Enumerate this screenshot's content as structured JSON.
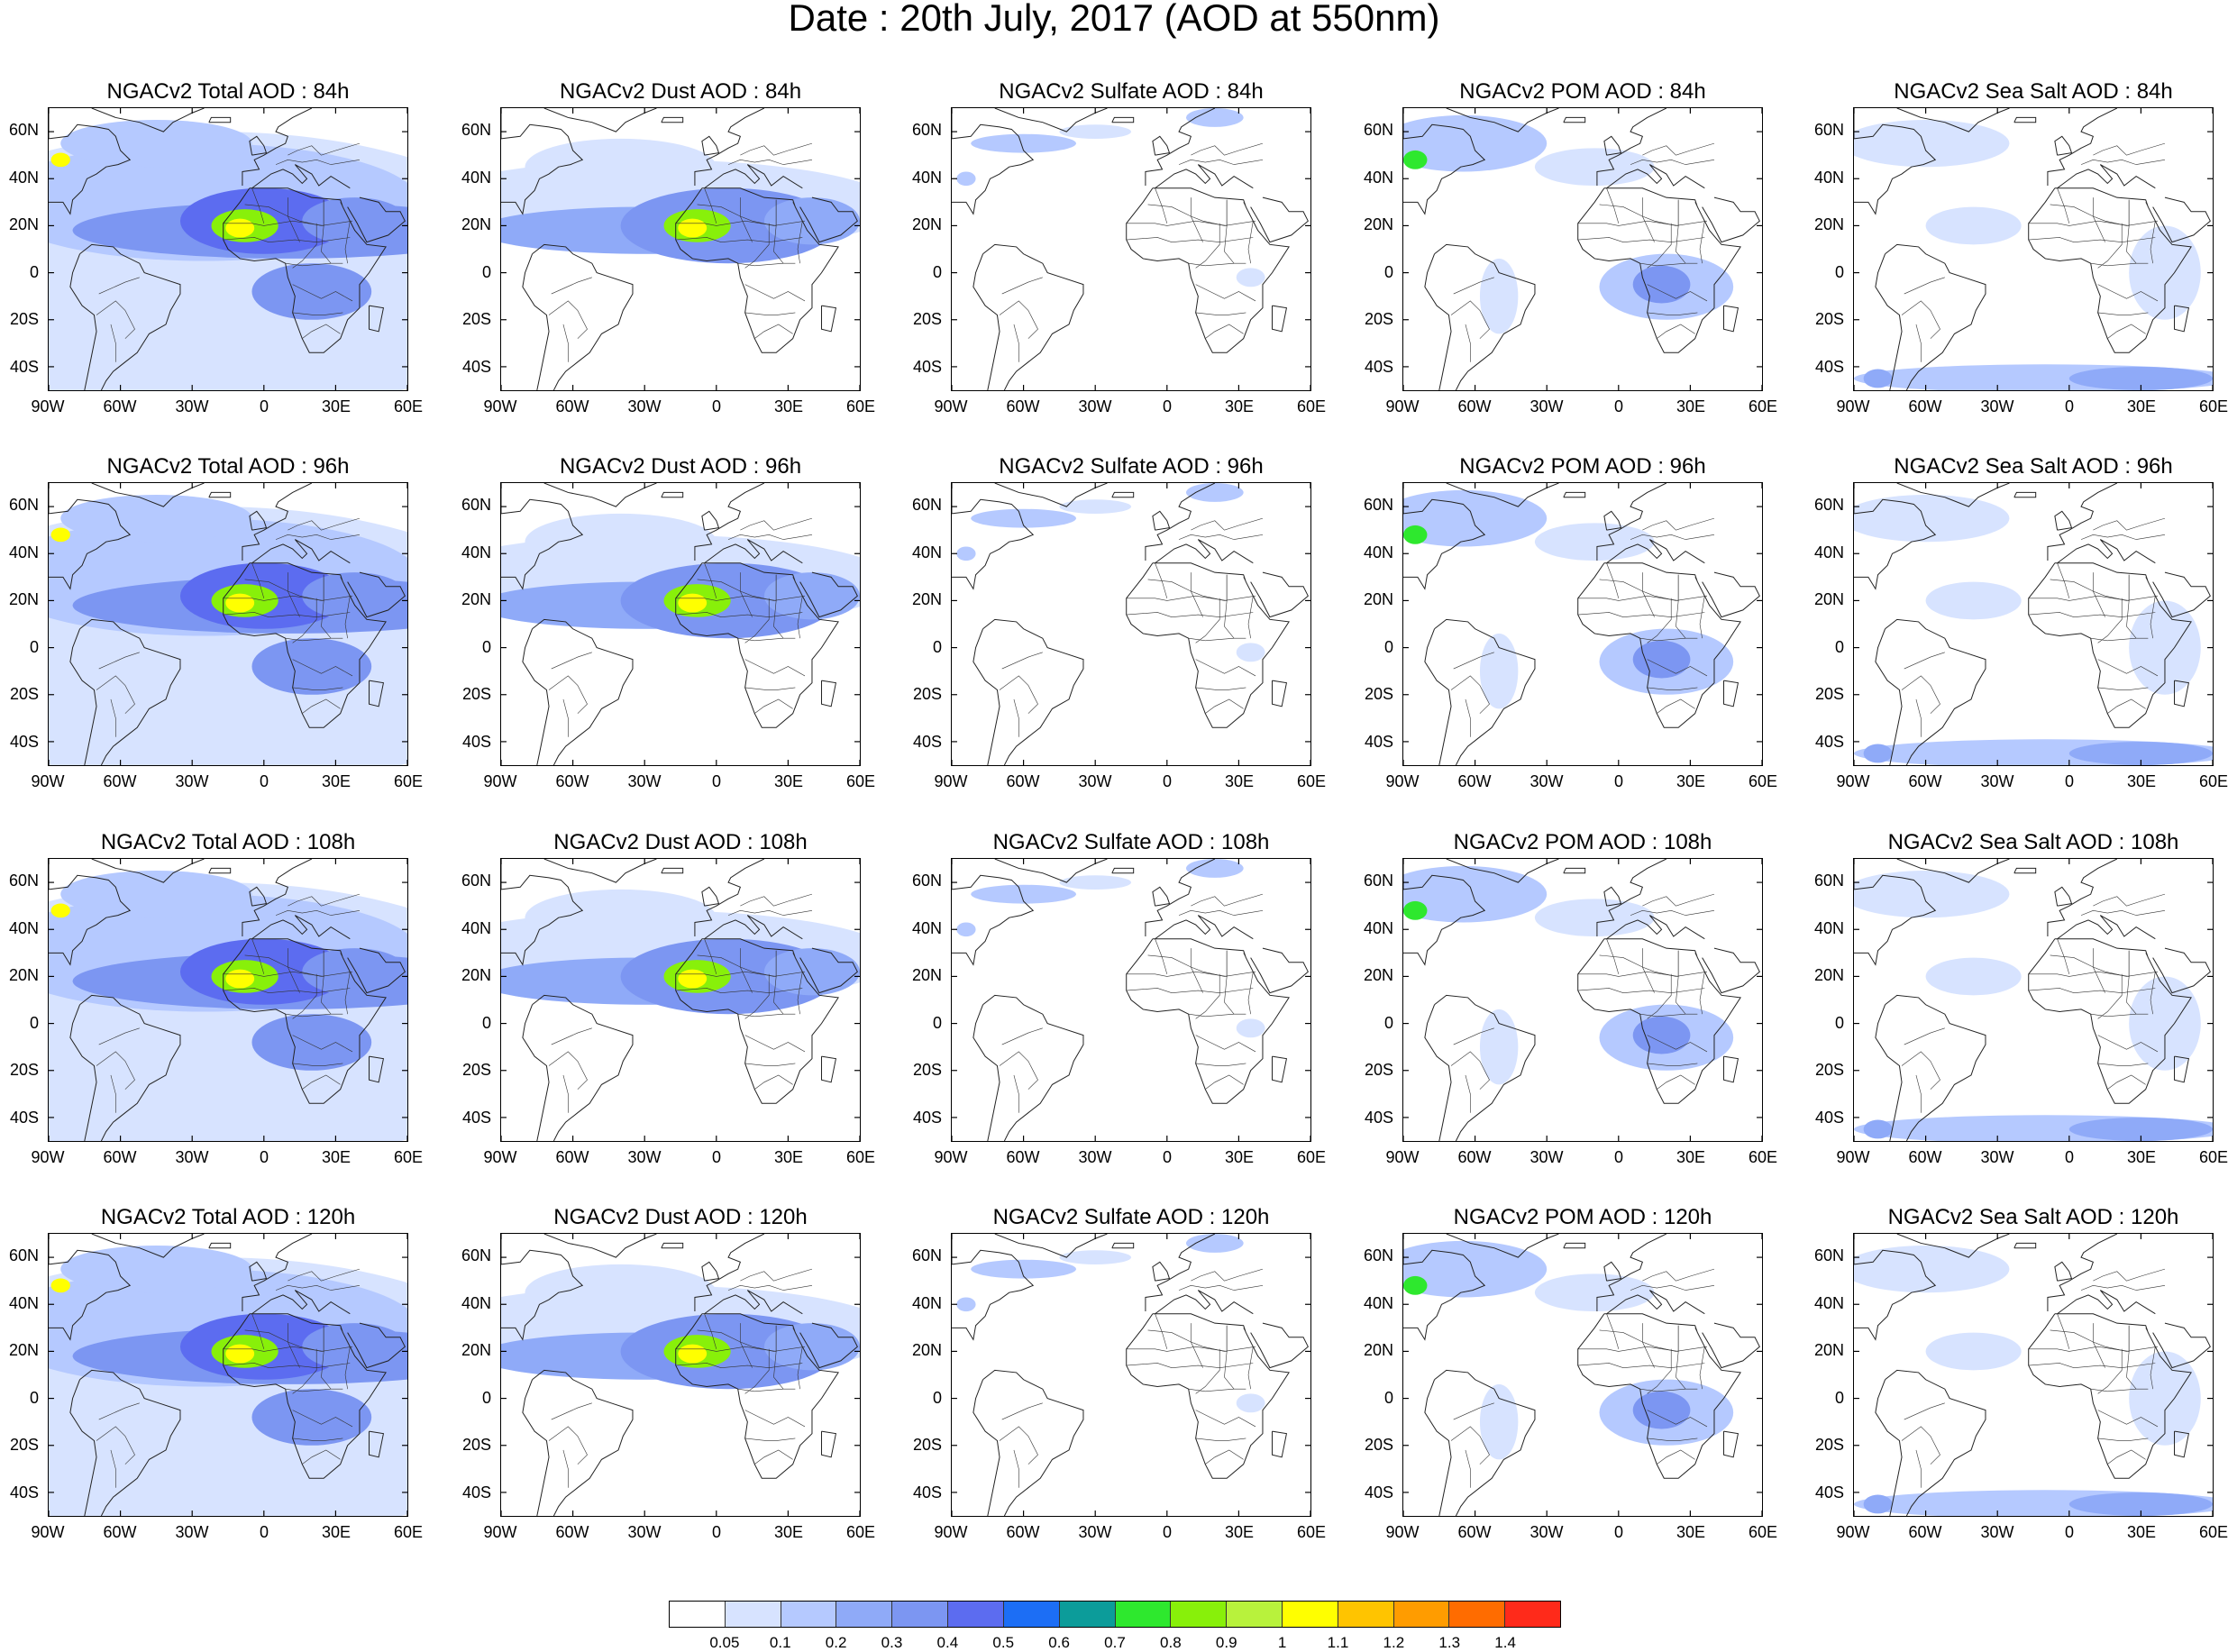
{
  "title": "Date : 20th July, 2017 (AOD at 550nm)",
  "lat_labels": [
    "60N",
    "40N",
    "20N",
    "0",
    "20S",
    "40S"
  ],
  "lat_values": [
    60,
    40,
    20,
    0,
    -20,
    -40
  ],
  "lon_labels": [
    "90W",
    "60W",
    "30W",
    "0",
    "30E",
    "60E"
  ],
  "lon_values": [
    -90,
    -60,
    -30,
    0,
    30,
    60
  ],
  "map_extent": {
    "lon_min": -90,
    "lon_max": 60,
    "lat_min": -50,
    "lat_max": 70
  },
  "panels": [
    {
      "title": "NGACv2 Total AOD : 84h",
      "species": "total",
      "lead": "84h"
    },
    {
      "title": "NGACv2 Dust AOD : 84h",
      "species": "dust",
      "lead": "84h"
    },
    {
      "title": "NGACv2 Sulfate AOD : 84h",
      "species": "sulfate",
      "lead": "84h"
    },
    {
      "title": "NGACv2 POM AOD : 84h",
      "species": "pom",
      "lead": "84h"
    },
    {
      "title": "NGACv2 Sea Salt AOD : 84h",
      "species": "seasalt",
      "lead": "84h"
    },
    {
      "title": "NGACv2 Total AOD : 96h",
      "species": "total",
      "lead": "96h"
    },
    {
      "title": "NGACv2 Dust AOD : 96h",
      "species": "dust",
      "lead": "96h"
    },
    {
      "title": "NGACv2 Sulfate AOD : 96h",
      "species": "sulfate",
      "lead": "96h"
    },
    {
      "title": "NGACv2 POM AOD : 96h",
      "species": "pom",
      "lead": "96h"
    },
    {
      "title": "NGACv2 Sea Salt AOD : 96h",
      "species": "seasalt",
      "lead": "96h"
    },
    {
      "title": "NGACv2 Total AOD : 108h",
      "species": "total",
      "lead": "108h"
    },
    {
      "title": "NGACv2 Dust AOD : 108h",
      "species": "dust",
      "lead": "108h"
    },
    {
      "title": "NGACv2 Sulfate AOD : 108h",
      "species": "sulfate",
      "lead": "108h"
    },
    {
      "title": "NGACv2 POM AOD : 108h",
      "species": "pom",
      "lead": "108h"
    },
    {
      "title": "NGACv2 Sea Salt AOD : 108h",
      "species": "seasalt",
      "lead": "108h"
    },
    {
      "title": "NGACv2 Total AOD : 120h",
      "species": "total",
      "lead": "120h"
    },
    {
      "title": "NGACv2 Dust AOD : 120h",
      "species": "dust",
      "lead": "120h"
    },
    {
      "title": "NGACv2 Sulfate AOD : 120h",
      "species": "sulfate",
      "lead": "120h"
    },
    {
      "title": "NGACv2 POM AOD : 120h",
      "species": "pom",
      "lead": "120h"
    },
    {
      "title": "NGACv2 Sea Salt  AOD : 120h",
      "species": "seasalt",
      "lead": "120h"
    }
  ],
  "colorbar": {
    "labels": [
      "0.05",
      "0.1",
      "0.2",
      "0.3",
      "0.4",
      "0.5",
      "0.6",
      "0.7",
      "0.8",
      "0.9",
      "1",
      "1.1",
      "1.2",
      "1.3",
      "1.4"
    ],
    "colors": [
      "#ffffff",
      "#d7e3ff",
      "#b5c9ff",
      "#8faaf8",
      "#7c96f2",
      "#5c6cf0",
      "#1c6ef5",
      "#0c9c9a",
      "#2ee82e",
      "#88f00a",
      "#b8f23c",
      "#ffff00",
      "#ffc400",
      "#ff9c00",
      "#ff6c00",
      "#ff2a1a"
    ]
  }
}
